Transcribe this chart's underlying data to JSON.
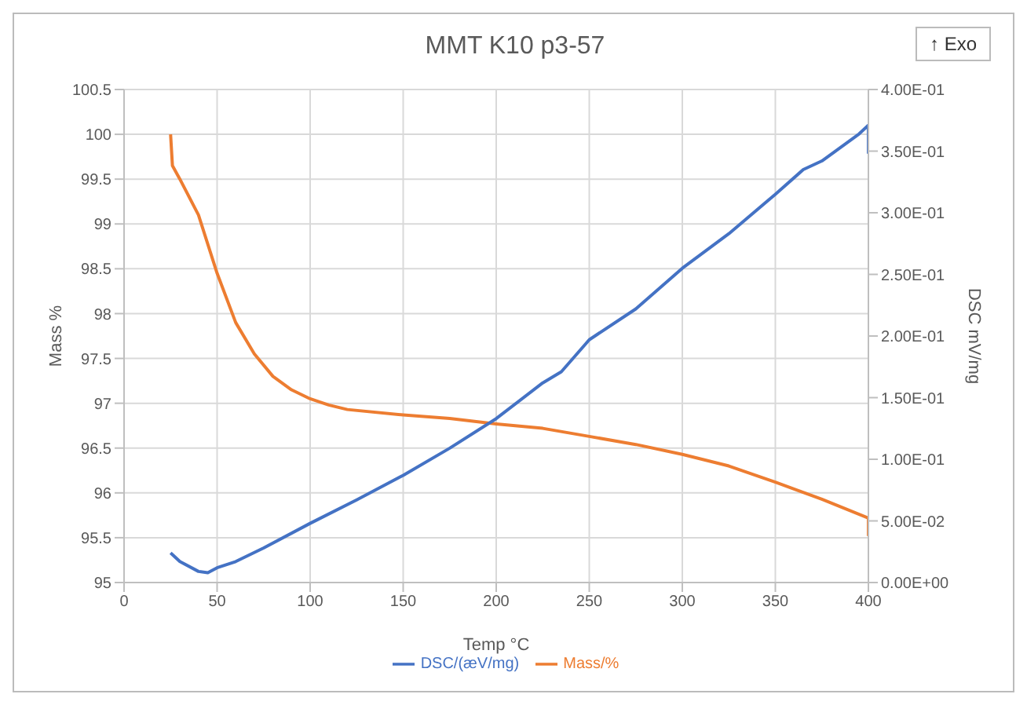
{
  "chart_data": {
    "type": "line",
    "title": "MMT K10 p3-57",
    "xlabel": "Temp °C",
    "ylabel": "Mass %",
    "y2label": "DSC mV/mg",
    "annotations": [
      "↑ Exo"
    ],
    "xlim": [
      0,
      400
    ],
    "xticks": [
      0,
      50,
      100,
      150,
      200,
      250,
      300,
      350,
      400
    ],
    "ylim": [
      95,
      100.5
    ],
    "yticks": [
      95,
      95.5,
      96,
      96.5,
      97,
      97.5,
      98,
      98.5,
      99,
      99.5,
      100,
      100.5
    ],
    "y2lim": [
      0,
      0.4
    ],
    "y2ticks": [
      {
        "value": 0,
        "label": "0.00E+00"
      },
      {
        "value": 0.05,
        "label": "5.00E-02"
      },
      {
        "value": 0.1,
        "label": "1.00E-01"
      },
      {
        "value": 0.15,
        "label": "1.50E-01"
      },
      {
        "value": 0.2,
        "label": "2.00E-01"
      },
      {
        "value": 0.25,
        "label": "2.50E-01"
      },
      {
        "value": 0.3,
        "label": "3.00E-01"
      },
      {
        "value": 0.35,
        "label": "3.50E-01"
      },
      {
        "value": 0.4,
        "label": "4.00E-01"
      }
    ],
    "grid": true,
    "legend": "bottom",
    "marker": "none",
    "line_style": "solid",
    "series": [
      {
        "name": "Mass/%",
        "color": "#ed7d31",
        "x": [
          25,
          26,
          30,
          40,
          50,
          60,
          70,
          80,
          90,
          100,
          110,
          120,
          150,
          175,
          200,
          225,
          250,
          275,
          300,
          325,
          350,
          375,
          400,
          400
        ],
        "values": [
          100,
          99.65,
          99.5,
          99.1,
          98.45,
          97.9,
          97.55,
          97.3,
          97.15,
          97.05,
          96.98,
          96.93,
          96.87,
          96.83,
          96.77,
          96.72,
          96.63,
          96.54,
          96.43,
          96.3,
          96.12,
          95.93,
          95.72,
          95.52
        ]
      },
      {
        "name": "DSC/(æV/mg)",
        "color": "#4472c4",
        "axis": "y2",
        "x": [
          25,
          30,
          40,
          45,
          50,
          60,
          75,
          100,
          125,
          150,
          175,
          200,
          225,
          235,
          250,
          275,
          300,
          325,
          350,
          365,
          375,
          395,
          400,
          400
        ],
        "values": [
          0.024,
          0.017,
          0.009,
          0.008,
          0.012,
          0.017,
          0.028,
          0.048,
          0.067,
          0.087,
          0.109,
          0.133,
          0.162,
          0.171,
          0.197,
          0.222,
          0.255,
          0.283,
          0.315,
          0.335,
          0.342,
          0.364,
          0.371,
          0.348
        ]
      }
    ]
  }
}
